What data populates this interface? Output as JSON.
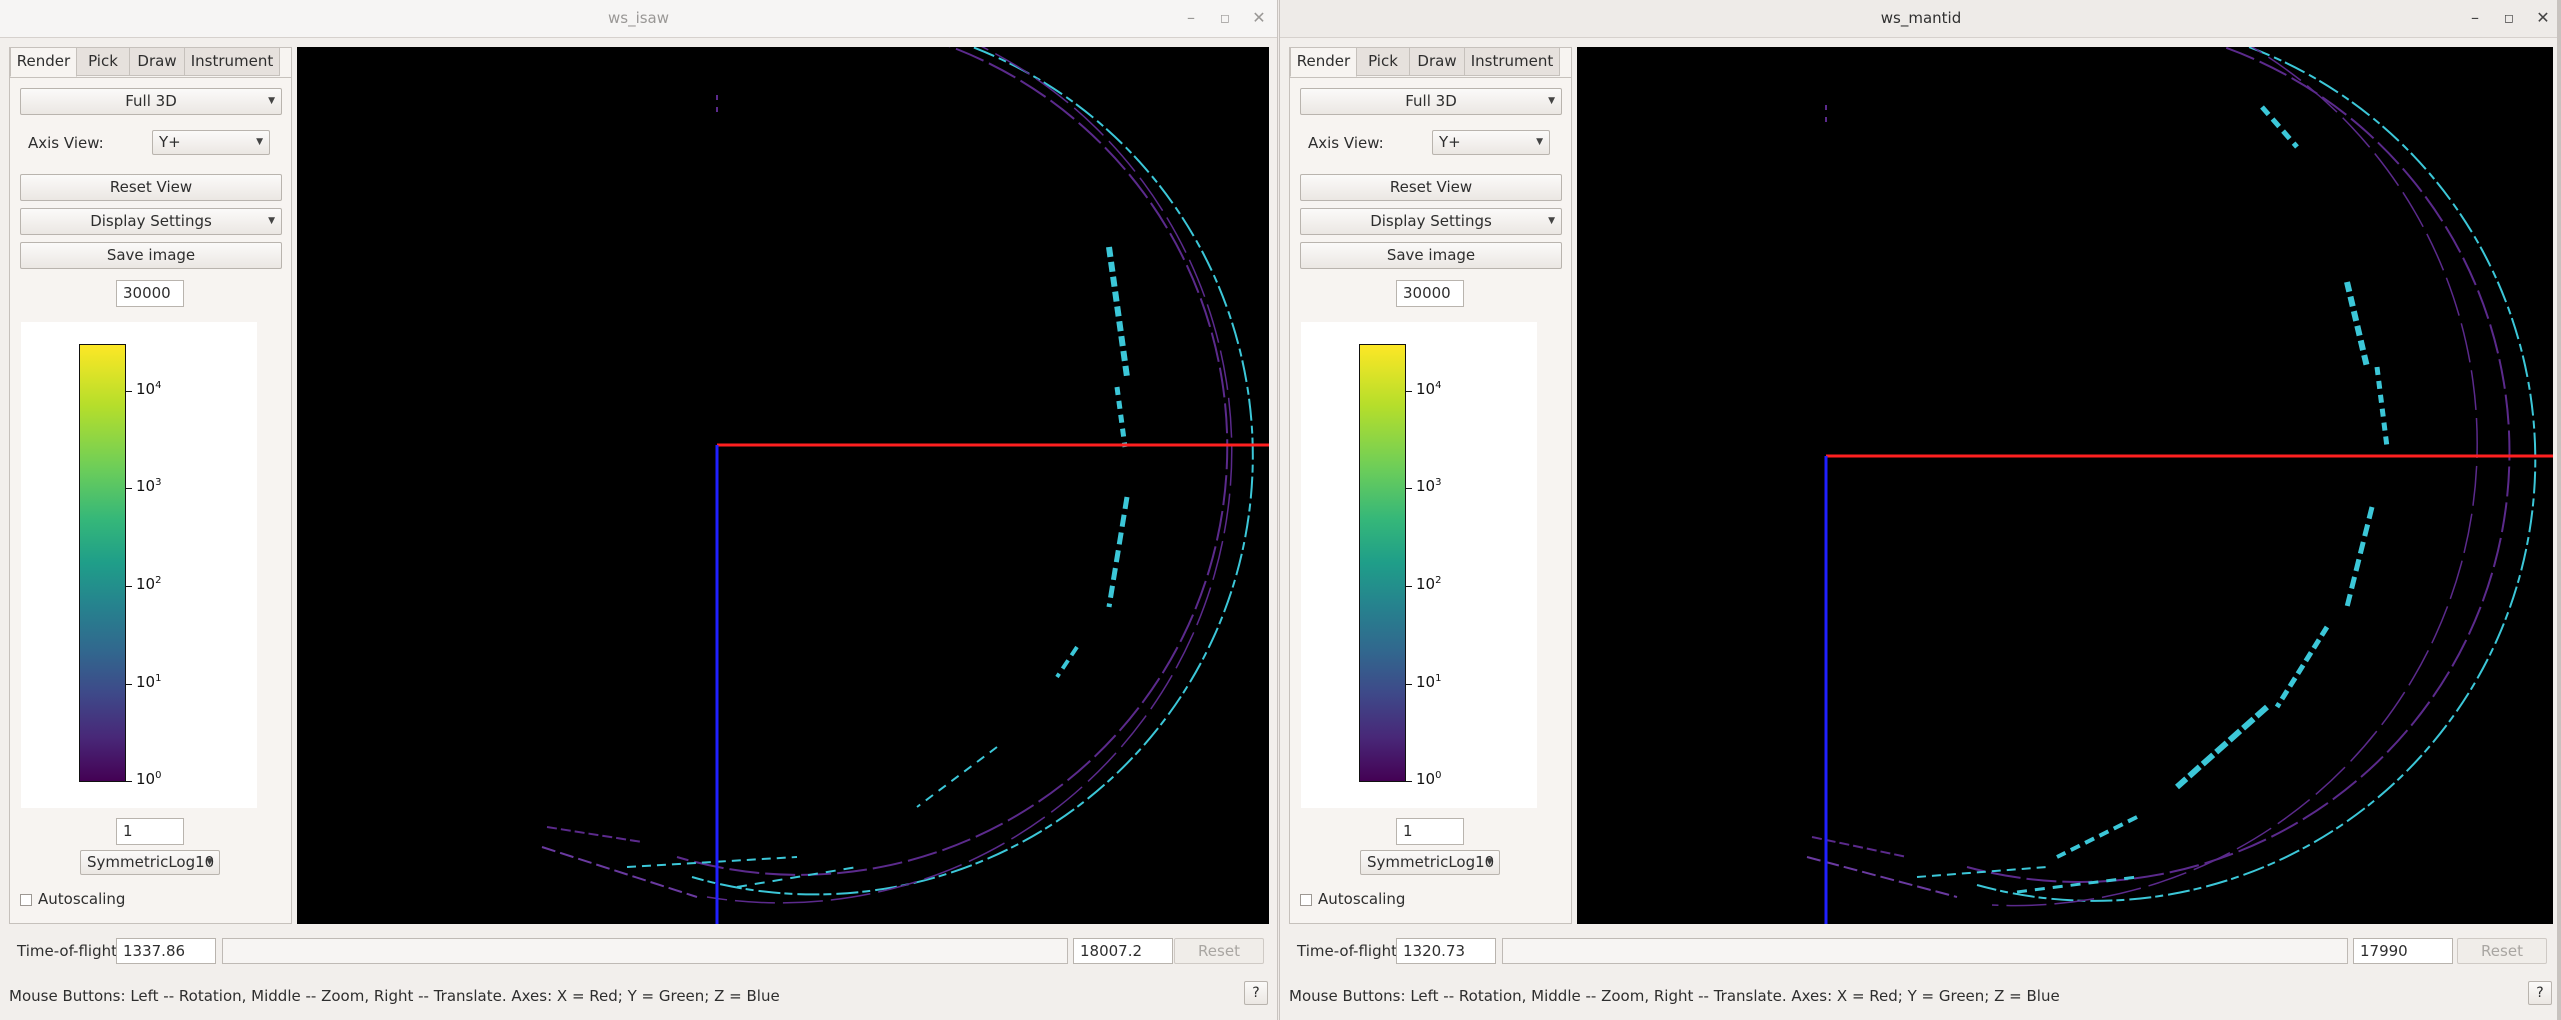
{
  "colors": {
    "x_axis": "#ff2020",
    "z_axis": "#2020ff",
    "viewport_bg": "#000000",
    "detector_cyan": "#3cc7d8",
    "detector_purple": "#5b2a8c"
  },
  "windows": [
    {
      "title": "ws_isaw",
      "tabs": [
        "Render",
        "Pick",
        "Draw",
        "Instrument"
      ],
      "render_mode": "Full 3D",
      "axis_view_label": "Axis View:",
      "axis_view_value": "Y+",
      "reset_view_label": "Reset View",
      "display_settings_label": "Display Settings",
      "save_image_label": "Save image",
      "max_value": "30000",
      "min_value": "1",
      "scale_type": "SymmetricLog10",
      "autoscaling_label": "Autoscaling",
      "colorbar_ticks": [
        {
          "base": "10",
          "exp": "4"
        },
        {
          "base": "10",
          "exp": "3"
        },
        {
          "base": "10",
          "exp": "2"
        },
        {
          "base": "10",
          "exp": "1"
        },
        {
          "base": "10",
          "exp": "0"
        }
      ],
      "tof_label": "Time-of-flight",
      "tof_min": "1337.86",
      "tof_max": "18007.2",
      "reset_label": "Reset",
      "status_text": "Mouse Buttons: Left -- Rotation, Middle -- Zoom, Right -- Translate. Axes: X = Red; Y = Green; Z = Blue",
      "help_label": "?"
    },
    {
      "title": "ws_mantid",
      "tabs": [
        "Render",
        "Pick",
        "Draw",
        "Instrument"
      ],
      "render_mode": "Full 3D",
      "axis_view_label": "Axis View:",
      "axis_view_value": "Y+",
      "reset_view_label": "Reset View",
      "display_settings_label": "Display Settings",
      "save_image_label": "Save image",
      "max_value": "30000",
      "min_value": "1",
      "scale_type": "SymmetricLog10",
      "autoscaling_label": "Autoscaling",
      "colorbar_ticks": [
        {
          "base": "10",
          "exp": "4"
        },
        {
          "base": "10",
          "exp": "3"
        },
        {
          "base": "10",
          "exp": "2"
        },
        {
          "base": "10",
          "exp": "1"
        },
        {
          "base": "10",
          "exp": "0"
        }
      ],
      "tof_label": "Time-of-flight",
      "tof_min": "1320.73",
      "tof_max": "17990",
      "reset_label": "Reset",
      "status_text": "Mouse Buttons: Left -- Rotation, Middle -- Zoom, Right -- Translate. Axes: X = Red; Y = Green; Z = Blue",
      "help_label": "?"
    }
  ]
}
